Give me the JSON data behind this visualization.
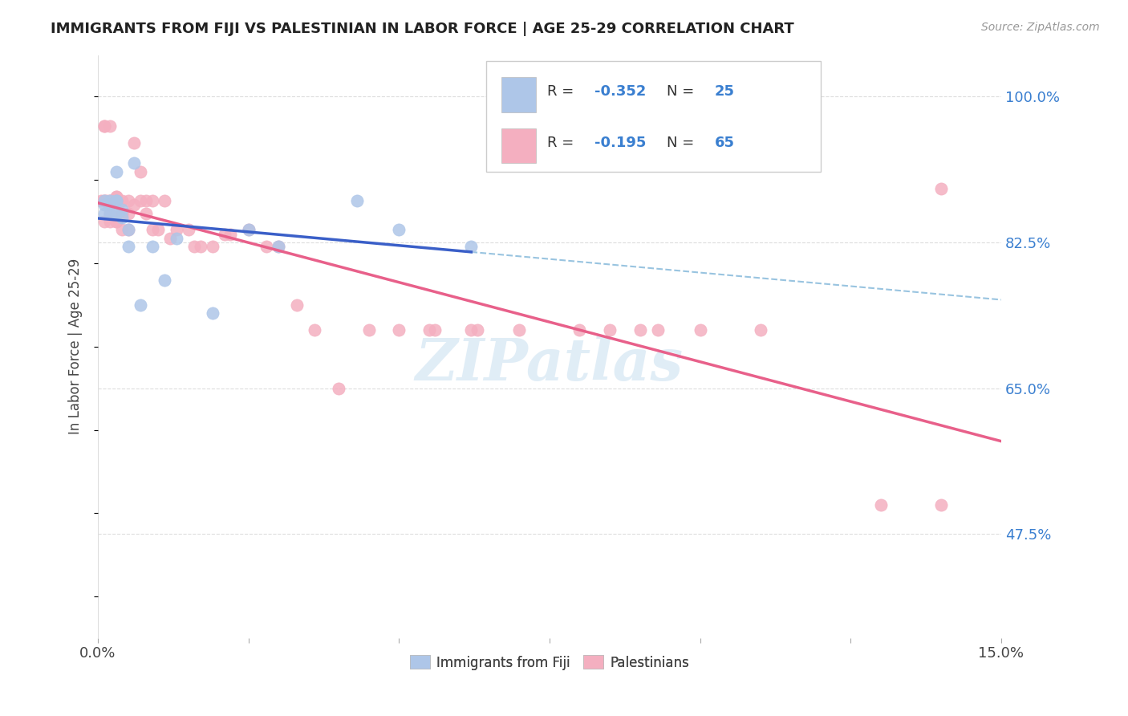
{
  "title": "IMMIGRANTS FROM FIJI VS PALESTINIAN IN LABOR FORCE | AGE 25-29 CORRELATION CHART",
  "source": "Source: ZipAtlas.com",
  "ylabel": "In Labor Force | Age 25-29",
  "x_min": 0.0,
  "x_max": 0.15,
  "y_min": 0.35,
  "y_max": 1.05,
  "x_tick_positions": [
    0.0,
    0.025,
    0.05,
    0.075,
    0.1,
    0.125,
    0.15
  ],
  "x_tick_labels": [
    "0.0%",
    "",
    "",
    "",
    "",
    "",
    "15.0%"
  ],
  "y_tick_labels_right": [
    "100.0%",
    "82.5%",
    "65.0%",
    "47.5%"
  ],
  "y_tick_positions_right": [
    1.0,
    0.825,
    0.65,
    0.475
  ],
  "fiji_color": "#aec6e8",
  "palestinian_color": "#f4afc0",
  "fiji_line_color": "#3a5fc8",
  "palestinian_line_color": "#e8608a",
  "dashed_line_color": "#99c4e0",
  "legend_fiji_r": "-0.352",
  "legend_fiji_n": "25",
  "legend_pal_r": "-0.195",
  "legend_pal_n": "65",
  "watermark": "ZIPatlas",
  "background_color": "#ffffff",
  "grid_color": "#dddddd",
  "fiji_points_x": [
    0.001,
    0.001,
    0.001,
    0.002,
    0.002,
    0.002,
    0.003,
    0.003,
    0.003,
    0.003,
    0.004,
    0.004,
    0.005,
    0.005,
    0.006,
    0.007,
    0.009,
    0.011,
    0.013,
    0.019,
    0.025,
    0.03,
    0.043,
    0.05,
    0.062
  ],
  "fiji_points_y": [
    0.875,
    0.87,
    0.86,
    0.875,
    0.87,
    0.86,
    0.91,
    0.875,
    0.875,
    0.86,
    0.865,
    0.855,
    0.82,
    0.84,
    0.92,
    0.75,
    0.82,
    0.78,
    0.83,
    0.74,
    0.84,
    0.82,
    0.875,
    0.84,
    0.82
  ],
  "pal_points_x": [
    0.0005,
    0.001,
    0.001,
    0.001,
    0.001,
    0.001,
    0.0015,
    0.002,
    0.002,
    0.002,
    0.002,
    0.002,
    0.0025,
    0.003,
    0.003,
    0.003,
    0.003,
    0.003,
    0.004,
    0.004,
    0.004,
    0.004,
    0.005,
    0.005,
    0.005,
    0.006,
    0.006,
    0.007,
    0.007,
    0.008,
    0.008,
    0.009,
    0.009,
    0.01,
    0.011,
    0.012,
    0.013,
    0.015,
    0.016,
    0.017,
    0.019,
    0.021,
    0.022,
    0.025,
    0.028,
    0.03,
    0.033,
    0.036,
    0.04,
    0.045,
    0.05,
    0.056,
    0.063,
    0.07,
    0.08,
    0.09,
    0.1,
    0.11,
    0.13,
    0.14,
    0.055,
    0.062,
    0.085,
    0.093,
    0.14
  ],
  "pal_points_y": [
    0.875,
    0.965,
    0.965,
    0.875,
    0.875,
    0.85,
    0.875,
    0.965,
    0.875,
    0.875,
    0.86,
    0.85,
    0.875,
    0.88,
    0.88,
    0.875,
    0.85,
    0.85,
    0.875,
    0.86,
    0.86,
    0.84,
    0.875,
    0.86,
    0.84,
    0.945,
    0.87,
    0.91,
    0.875,
    0.875,
    0.86,
    0.875,
    0.84,
    0.84,
    0.875,
    0.83,
    0.84,
    0.84,
    0.82,
    0.82,
    0.82,
    0.835,
    0.835,
    0.84,
    0.82,
    0.82,
    0.75,
    0.72,
    0.65,
    0.72,
    0.72,
    0.72,
    0.72,
    0.72,
    0.72,
    0.72,
    0.72,
    0.72,
    0.51,
    0.51,
    0.72,
    0.72,
    0.72,
    0.72,
    0.89
  ]
}
